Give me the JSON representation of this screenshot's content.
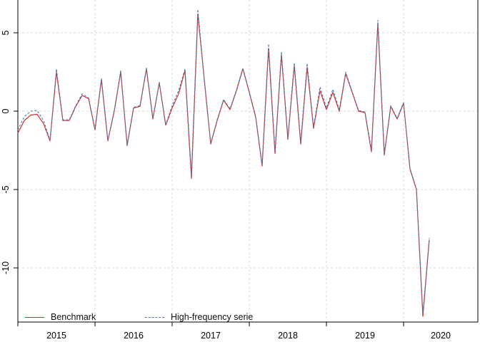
{
  "legend": {
    "benchmark_label": "Benchmark",
    "highfreq_label": "High-frequency serie"
  },
  "colors": {
    "benchmark": "#cc3333",
    "highfreq": "#4a7cb0",
    "grid": "#d8d8d8",
    "axis": "#000000",
    "tick_text": "#000000"
  },
  "chart_data": {
    "type": "line",
    "frequency": "monthly",
    "x_start": "2015-01",
    "x_end": "2020-05",
    "x_tick_labels": [
      "2015",
      "2016",
      "2017",
      "2018",
      "2019",
      "2020"
    ],
    "y_tick_labels": [
      "5",
      "0",
      "-5",
      "-10"
    ],
    "y_ticks": [
      5,
      0,
      -5,
      -10
    ],
    "ylim": [
      -13.4,
      6.9
    ],
    "grid": true,
    "legend_position": "bottom",
    "series": [
      {
        "name": "Benchmark",
        "style": "solid",
        "values": [
          -1.4,
          -0.6,
          -0.25,
          -0.2,
          -0.8,
          -1.9,
          2.5,
          -0.6,
          -0.6,
          0.3,
          1.0,
          0.8,
          -1.2,
          2.0,
          -1.9,
          0.0,
          2.5,
          -2.2,
          0.2,
          0.3,
          2.7,
          -0.5,
          1.8,
          -0.9,
          0.2,
          1.1,
          2.6,
          -4.3,
          6.2,
          2.0,
          -2.1,
          -0.6,
          0.7,
          0.1,
          1.3,
          2.7,
          1.2,
          -0.4,
          -3.5,
          4.0,
          -2.7,
          3.6,
          -1.8,
          2.9,
          -2.1,
          2.8,
          -1.1,
          1.3,
          0.1,
          1.2,
          0.0,
          2.4,
          1.2,
          0.0,
          -0.1,
          -2.6,
          5.6,
          -2.8,
          0.3,
          -0.5,
          0.5,
          -3.7,
          -5.0,
          -13.1,
          -8.2
        ]
      },
      {
        "name": "High-frequency serie",
        "style": "dashed",
        "values": [
          -1.2,
          -0.35,
          0.0,
          0.05,
          -0.6,
          -1.85,
          2.7,
          -0.55,
          -0.55,
          0.35,
          1.1,
          0.85,
          -1.15,
          2.1,
          -1.85,
          0.05,
          2.6,
          -2.15,
          0.25,
          0.35,
          2.75,
          -0.45,
          1.85,
          -0.85,
          0.35,
          1.3,
          2.7,
          -4.0,
          6.5,
          2.05,
          -2.05,
          -0.55,
          0.75,
          0.15,
          1.35,
          2.75,
          1.25,
          -0.35,
          -3.4,
          4.3,
          -2.55,
          3.8,
          -1.7,
          3.1,
          -1.95,
          3.05,
          -1.0,
          1.55,
          0.2,
          1.4,
          0.1,
          2.5,
          1.25,
          0.05,
          -0.05,
          -2.45,
          5.8,
          -2.7,
          0.35,
          -0.45,
          0.55,
          -3.65,
          -4.95,
          -12.9,
          -8.1
        ]
      }
    ]
  }
}
